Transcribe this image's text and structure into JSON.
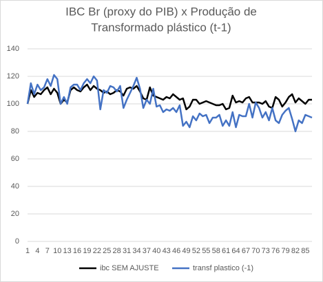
{
  "chart_data": {
    "type": "line",
    "title": [
      "IBC Br (proxy do PIB) x Produção de",
      "Transformado plástico (t-1)"
    ],
    "categories": [
      "1",
      null,
      null,
      "4",
      null,
      null,
      "7",
      null,
      null,
      "10",
      null,
      null,
      "13",
      null,
      null,
      "16",
      null,
      null,
      "19",
      null,
      null,
      "22",
      null,
      null,
      "25",
      null,
      null,
      "28",
      null,
      null,
      "31",
      null,
      null,
      "34",
      null,
      null,
      "37",
      null,
      null,
      "40",
      null,
      null,
      "43",
      null,
      null,
      "46",
      null,
      null,
      "49",
      null,
      null,
      "52",
      null,
      null,
      "55",
      null,
      null,
      "58",
      null,
      null,
      "61",
      null,
      null,
      "64",
      null,
      null,
      "67",
      null,
      null,
      "70",
      null,
      null,
      "73",
      null,
      null,
      "76",
      null,
      null,
      "79",
      null,
      null,
      "82",
      null,
      null,
      "85",
      null,
      null
    ],
    "series": [
      {
        "name": "ibc SEM AJUSTE",
        "color": "#000000",
        "values": [
          100,
          110,
          105,
          108,
          107,
          110,
          112,
          107,
          111,
          108,
          100,
          103,
          101,
          110,
          112,
          110,
          109,
          112,
          114,
          110,
          113,
          111,
          110,
          108,
          109,
          107,
          108,
          110,
          109,
          106,
          111,
          112,
          111,
          113,
          109,
          104,
          103,
          112,
          106,
          105,
          104,
          103,
          105,
          104,
          107,
          105,
          103,
          104,
          96,
          98,
          103,
          103,
          100,
          101,
          102,
          101,
          100,
          99,
          99,
          100,
          96,
          97,
          106,
          101,
          102,
          101,
          104,
          105,
          101,
          101,
          101,
          100,
          102,
          98,
          97,
          105,
          103,
          98,
          101,
          105,
          107,
          101,
          104,
          102,
          100,
          103,
          103
        ]
      },
      {
        "name": "transf plastico (-1)",
        "color": "#4472c4",
        "values": [
          100,
          115,
          107,
          114,
          110,
          112,
          118,
          113,
          121,
          118,
          100,
          105,
          100,
          112,
          114,
          114,
          110,
          115,
          118,
          115,
          120,
          117,
          96,
          110,
          108,
          113,
          112,
          109,
          113,
          97,
          103,
          108,
          113,
          119,
          111,
          97,
          103,
          100,
          111,
          98,
          99,
          94,
          96,
          95,
          97,
          94,
          99,
          84,
          87,
          83,
          91,
          88,
          93,
          91,
          92,
          86,
          90,
          90,
          92,
          84,
          88,
          84,
          94,
          83,
          92,
          91,
          91,
          100,
          90,
          101,
          97,
          90,
          94,
          88,
          97,
          88,
          86,
          92,
          95,
          97,
          89,
          80,
          88,
          86,
          92,
          91,
          90
        ]
      }
    ],
    "ylim": [
      0,
      140
    ],
    "yticks": [
      0,
      20,
      40,
      60,
      80,
      100,
      120,
      140
    ],
    "grid": true,
    "legend": "bottom"
  }
}
